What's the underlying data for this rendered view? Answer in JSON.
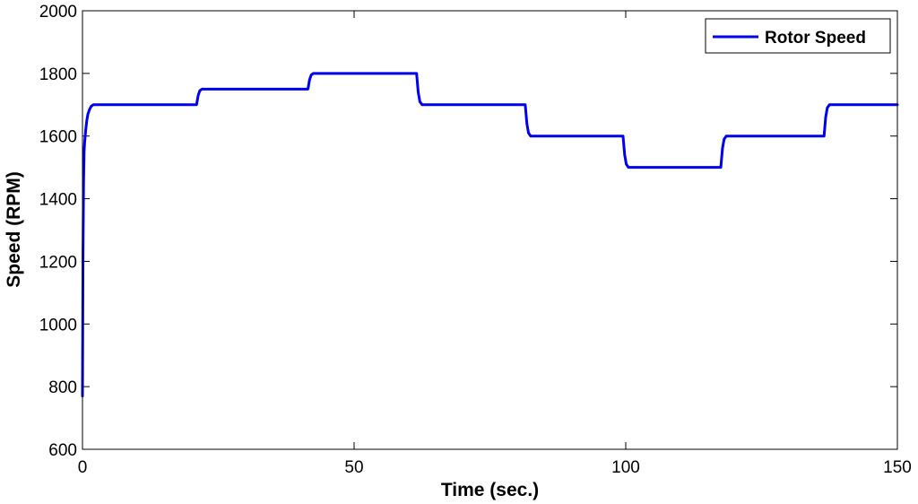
{
  "chart_data": {
    "type": "line",
    "title": "",
    "xlabel": "Time (sec.)",
    "ylabel": "Speed (RPM)",
    "xlim": [
      0,
      150
    ],
    "ylim": [
      600,
      2000
    ],
    "x_ticks": [
      0,
      50,
      100,
      150
    ],
    "y_ticks": [
      600,
      800,
      1000,
      1200,
      1400,
      1600,
      1800,
      2000
    ],
    "grid": false,
    "legend_position": "top-right",
    "series": [
      {
        "name": "Rotor Speed",
        "color": "#0000ee",
        "x": [
          0,
          0.05,
          0.1,
          0.2,
          0.3,
          0.4,
          0.5,
          0.6,
          0.8,
          1.0,
          1.3,
          1.6,
          2.0,
          21.0,
          21.3,
          21.6,
          22.0,
          41.5,
          41.8,
          42.1,
          42.5,
          61.5,
          61.8,
          62.1,
          62.5,
          81.5,
          81.8,
          82.1,
          82.5,
          99.5,
          99.8,
          100.1,
          100.5,
          117.5,
          117.8,
          118.1,
          118.5,
          136.5,
          136.8,
          137.1,
          137.5,
          150
        ],
        "y": [
          770,
          1000,
          1230,
          1450,
          1550,
          1580,
          1600,
          1620,
          1650,
          1670,
          1685,
          1695,
          1700,
          1700,
          1730,
          1745,
          1750,
          1750,
          1780,
          1795,
          1800,
          1800,
          1740,
          1710,
          1700,
          1700,
          1640,
          1610,
          1600,
          1600,
          1540,
          1510,
          1500,
          1500,
          1560,
          1590,
          1600,
          1600,
          1660,
          1690,
          1700,
          1700
        ]
      }
    ]
  }
}
